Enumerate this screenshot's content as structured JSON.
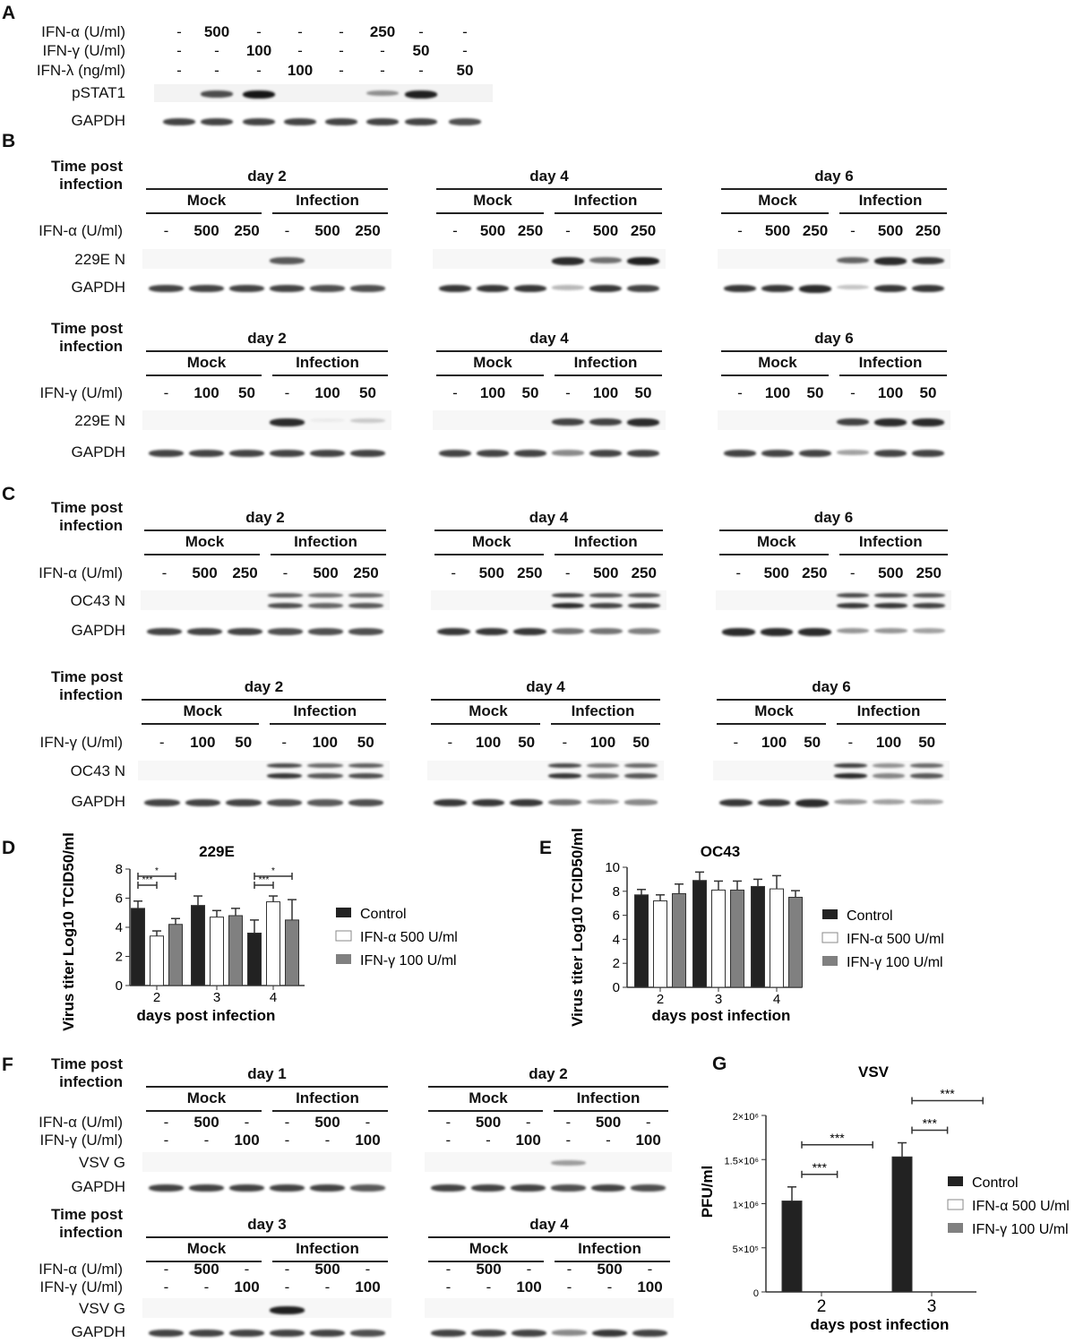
{
  "panel_letters": [
    "A",
    "B",
    "C",
    "D",
    "E",
    "F",
    "G"
  ],
  "panel_a": {
    "treatment_labels": [
      "IFN-α (U/ml)",
      "IFN-γ (U/ml)",
      "IFN-λ (ng/ml)"
    ],
    "treatments": [
      [
        "-",
        "500",
        "-",
        "-",
        "-",
        "250",
        "-",
        "-"
      ],
      [
        "-",
        "-",
        "100",
        "-",
        "-",
        "-",
        "50",
        "-"
      ],
      [
        "-",
        "-",
        "-",
        "100",
        "-",
        "-",
        "-",
        "50"
      ]
    ],
    "band_labels": [
      "pSTAT1",
      "GAPDH"
    ],
    "bands": [
      [
        0,
        0.75,
        1,
        0,
        0,
        0.45,
        0.95,
        0
      ],
      [
        0.8,
        0.8,
        0.8,
        0.8,
        0.8,
        0.8,
        0.8,
        0.75
      ]
    ]
  },
  "blot_rows": [
    {
      "header": "Time post infection",
      "treatment_labels": [
        "IFN-α (U/ml)"
      ],
      "band_labels": [
        "229E N",
        "GAPDH"
      ],
      "doublet": [
        false,
        false
      ],
      "days": [
        {
          "day": "day 2",
          "groups": [
            "Mock",
            "Infection"
          ],
          "treatments": [
            [
              "-",
              "500",
              "250",
              "-",
              "500",
              "250"
            ]
          ],
          "bands": [
            [
              0,
              0,
              0,
              0.7,
              0,
              0
            ],
            [
              0.8,
              0.8,
              0.8,
              0.8,
              0.75,
              0.75
            ]
          ]
        },
        {
          "day": "day 4",
          "groups": [
            "Mock",
            "Infection"
          ],
          "treatments": [
            [
              "-",
              "500",
              "250",
              "-",
              "500",
              "250"
            ]
          ],
          "bands": [
            [
              0,
              0,
              0,
              0.9,
              0.6,
              0.95
            ],
            [
              0.85,
              0.85,
              0.85,
              0.3,
              0.85,
              0.8
            ]
          ]
        },
        {
          "day": "day 6",
          "groups": [
            "Mock",
            "Infection"
          ],
          "treatments": [
            [
              "-",
              "500",
              "250",
              "-",
              "500",
              "250"
            ]
          ],
          "bands": [
            [
              0,
              0,
              0,
              0.65,
              0.9,
              0.85
            ],
            [
              0.85,
              0.85,
              0.9,
              0.25,
              0.85,
              0.85
            ]
          ]
        }
      ]
    },
    {
      "header": "Time post infection",
      "treatment_labels": [
        "IFN-γ (U/ml)"
      ],
      "band_labels": [
        "229E N",
        "GAPDH"
      ],
      "doublet": [
        false,
        false
      ],
      "days": [
        {
          "day": "day 2",
          "groups": [
            "Mock",
            "Infection"
          ],
          "treatments": [
            [
              "-",
              "100",
              "50",
              "-",
              "100",
              "50"
            ]
          ],
          "bands": [
            [
              0,
              0,
              0,
              0.9,
              0.05,
              0.2
            ],
            [
              0.8,
              0.8,
              0.8,
              0.8,
              0.8,
              0.8
            ]
          ]
        },
        {
          "day": "day 4",
          "groups": [
            "Mock",
            "Infection"
          ],
          "treatments": [
            [
              "-",
              "100",
              "50",
              "-",
              "100",
              "50"
            ]
          ],
          "bands": [
            [
              0,
              0,
              0,
              0.8,
              0.8,
              0.9
            ],
            [
              0.8,
              0.8,
              0.8,
              0.5,
              0.8,
              0.8
            ]
          ]
        },
        {
          "day": "day 6",
          "groups": [
            "Mock",
            "Infection"
          ],
          "treatments": [
            [
              "-",
              "100",
              "50",
              "-",
              "100",
              "50"
            ]
          ],
          "bands": [
            [
              0,
              0,
              0,
              0.8,
              0.9,
              0.9
            ],
            [
              0.8,
              0.8,
              0.8,
              0.4,
              0.8,
              0.8
            ]
          ]
        }
      ]
    },
    {
      "header": "Time post infection",
      "treatment_labels": [
        "IFN-α (U/ml)"
      ],
      "band_labels": [
        "OC43 N",
        "GAPDH"
      ],
      "doublet": [
        true,
        false
      ],
      "days": [
        {
          "day": "day 2",
          "groups": [
            "Mock",
            "Infection"
          ],
          "treatments": [
            [
              "-",
              "500",
              "250",
              "-",
              "500",
              "250"
            ]
          ],
          "bands": [
            [
              0,
              0,
              0,
              0.75,
              0.65,
              0.7
            ],
            [
              0.8,
              0.8,
              0.8,
              0.75,
              0.75,
              0.75
            ]
          ]
        },
        {
          "day": "day 4",
          "groups": [
            "Mock",
            "Infection"
          ],
          "treatments": [
            [
              "-",
              "500",
              "250",
              "-",
              "500",
              "250"
            ]
          ],
          "bands": [
            [
              0,
              0,
              0,
              0.9,
              0.8,
              0.8
            ],
            [
              0.85,
              0.85,
              0.85,
              0.6,
              0.6,
              0.55
            ]
          ]
        },
        {
          "day": "day 6",
          "groups": [
            "Mock",
            "Infection"
          ],
          "treatments": [
            [
              "-",
              "500",
              "250",
              "-",
              "500",
              "250"
            ]
          ],
          "bands": [
            [
              0,
              0,
              0,
              0.85,
              0.85,
              0.8
            ],
            [
              0.9,
              0.9,
              0.9,
              0.45,
              0.45,
              0.4
            ]
          ]
        }
      ]
    },
    {
      "header": "Time post infection",
      "treatment_labels": [
        "IFN-γ (U/ml)"
      ],
      "band_labels": [
        "OC43 N",
        "GAPDH"
      ],
      "doublet": [
        true,
        false
      ],
      "days": [
        {
          "day": "day 2",
          "groups": [
            "Mock",
            "Infection"
          ],
          "treatments": [
            [
              "-",
              "100",
              "50",
              "-",
              "100",
              "50"
            ]
          ],
          "bands": [
            [
              0,
              0,
              0,
              0.85,
              0.7,
              0.75
            ],
            [
              0.8,
              0.8,
              0.8,
              0.75,
              0.7,
              0.75
            ]
          ]
        },
        {
          "day": "day 4",
          "groups": [
            "Mock",
            "Infection"
          ],
          "treatments": [
            [
              "-",
              "100",
              "50",
              "-",
              "100",
              "50"
            ]
          ],
          "bands": [
            [
              0,
              0,
              0,
              0.85,
              0.6,
              0.7
            ],
            [
              0.85,
              0.85,
              0.85,
              0.6,
              0.45,
              0.5
            ]
          ]
        },
        {
          "day": "day 6",
          "groups": [
            "Mock",
            "Infection"
          ],
          "treatments": [
            [
              "-",
              "100",
              "50",
              "-",
              "100",
              "50"
            ]
          ],
          "bands": [
            [
              0,
              0,
              0,
              0.9,
              0.5,
              0.7
            ],
            [
              0.85,
              0.85,
              0.9,
              0.45,
              0.4,
              0.4
            ]
          ]
        }
      ]
    },
    {
      "header": "Time post infection",
      "treatment_labels": [
        "IFN-α (U/ml)",
        "IFN-γ (U/ml)"
      ],
      "band_labels": [
        "VSV G",
        "GAPDH"
      ],
      "doublet": [
        false,
        false
      ],
      "days": [
        {
          "day": "day 1",
          "groups": [
            "Mock",
            "Infection"
          ],
          "treatments": [
            [
              "-",
              "500",
              "-",
              "-",
              "500",
              "-"
            ],
            [
              "-",
              "-",
              "100",
              "-",
              "-",
              "100"
            ]
          ],
          "bands": [
            [
              0,
              0,
              0,
              0,
              0,
              0
            ],
            [
              0.8,
              0.8,
              0.8,
              0.8,
              0.8,
              0.7
            ]
          ]
        },
        {
          "day": "day 2",
          "groups": [
            "Mock",
            "Infection"
          ],
          "treatments": [
            [
              "-",
              "500",
              "-",
              "-",
              "500",
              "-"
            ],
            [
              "-",
              "-",
              "100",
              "-",
              "-",
              "100"
            ]
          ],
          "bands": [
            [
              0,
              0,
              0,
              0.4,
              0,
              0
            ],
            [
              0.8,
              0.8,
              0.8,
              0.75,
              0.8,
              0.75
            ]
          ]
        }
      ]
    },
    {
      "header": "Time post infection",
      "treatment_labels": [
        "IFN-α (U/ml)",
        "IFN-γ (U/ml)"
      ],
      "band_labels": [
        "VSV G",
        "GAPDH"
      ],
      "doublet": [
        false,
        false
      ],
      "days": [
        {
          "day": "day 3",
          "groups": [
            "Mock",
            "Infection"
          ],
          "treatments": [
            [
              "-",
              "500",
              "-",
              "-",
              "500",
              "-"
            ],
            [
              "-",
              "-",
              "100",
              "-",
              "-",
              "100"
            ]
          ],
          "bands": [
            [
              0,
              0,
              0,
              0.95,
              0,
              0
            ],
            [
              0.8,
              0.8,
              0.8,
              0.8,
              0.8,
              0.75
            ]
          ]
        },
        {
          "day": "day 4",
          "groups": [
            "Mock",
            "Infection"
          ],
          "treatments": [
            [
              "-",
              "500",
              "-",
              "-",
              "500",
              "-"
            ],
            [
              "-",
              "-",
              "100",
              "-",
              "-",
              "100"
            ]
          ],
          "bands": [
            [
              0,
              0,
              0,
              0,
              0,
              0
            ],
            [
              0.8,
              0.8,
              0.8,
              0.5,
              0.85,
              0.8
            ]
          ]
        }
      ]
    }
  ],
  "chart_data": [
    {
      "type": "bar",
      "title": "229E",
      "xlabel": "days post infection",
      "ylabel": "Virus titer Log10 TCID50/ml",
      "categories": [
        "2",
        "3",
        "4"
      ],
      "ylim": [
        0,
        8
      ],
      "yticks": [
        "0",
        "2",
        "4",
        "6",
        "8"
      ],
      "series": [
        {
          "name": "Control",
          "values": [
            5.3,
            5.5,
            3.6
          ],
          "errors": [
            0.5,
            0.65,
            0.9
          ],
          "color": "#222222"
        },
        {
          "name": "IFN-α 500 U/ml",
          "values": [
            3.4,
            4.7,
            5.75
          ],
          "errors": [
            0.35,
            0.45,
            0.4
          ],
          "color": "#ffffff"
        },
        {
          "name": "IFN-γ 100 U/ml",
          "values": [
            4.2,
            4.8,
            4.5
          ],
          "errors": [
            0.4,
            0.5,
            1.4
          ],
          "color": "#808080"
        }
      ],
      "significance": [
        {
          "category": "2",
          "from": 0,
          "to": 1,
          "label": "***"
        },
        {
          "category": "2",
          "from": 0,
          "to": 2,
          "label": "*"
        },
        {
          "category": "4",
          "from": 0,
          "to": 1,
          "label": "***"
        },
        {
          "category": "4",
          "from": 0,
          "to": 2,
          "label": "*"
        }
      ],
      "legend": "right"
    },
    {
      "type": "bar",
      "title": "OC43",
      "xlabel": "days post infection",
      "ylabel": "Virus titer Log10 TCID50/ml",
      "categories": [
        "2",
        "3",
        "4"
      ],
      "ylim": [
        0,
        10
      ],
      "yticks": [
        "0",
        "2",
        "4",
        "6",
        "8",
        "10"
      ],
      "series": [
        {
          "name": "Control",
          "values": [
            7.7,
            8.9,
            8.4
          ],
          "errors": [
            0.45,
            0.7,
            0.6
          ],
          "color": "#222222"
        },
        {
          "name": "IFN-α 500 U/ml",
          "values": [
            7.2,
            8.1,
            8.2
          ],
          "errors": [
            0.5,
            0.75,
            1.1
          ],
          "color": "#ffffff"
        },
        {
          "name": "IFN-γ 100 U/ml",
          "values": [
            7.8,
            8.1,
            7.5
          ],
          "errors": [
            0.8,
            0.75,
            0.55
          ],
          "color": "#808080"
        }
      ],
      "significance": [],
      "legend": "right"
    },
    {
      "type": "bar",
      "title": "VSV",
      "xlabel": "days post infection",
      "ylabel": "PFU/ml",
      "categories": [
        "2",
        "3"
      ],
      "ylim": [
        0,
        2000000
      ],
      "yticks": [
        "0",
        "5×10⁵",
        "1×10⁶",
        "1.5×10⁶",
        "2×10⁶"
      ],
      "series": [
        {
          "name": "Control",
          "values": [
            1030000,
            1530000
          ],
          "errors": [
            160000,
            160000
          ],
          "color": "#222222"
        },
        {
          "name": "IFN-α 500 U/ml",
          "values": [
            0,
            0
          ],
          "errors": [
            0,
            0
          ],
          "color": "#ffffff"
        },
        {
          "name": "IFN-γ 100 U/ml",
          "values": [
            0,
            0
          ],
          "errors": [
            0,
            0
          ],
          "color": "#808080"
        }
      ],
      "significance": [
        {
          "category": "2",
          "from": 0,
          "to": 1,
          "label": "***"
        },
        {
          "category": "2",
          "from": 0,
          "to": 2,
          "label": "***"
        },
        {
          "category": "3",
          "from": 0,
          "to": 1,
          "label": "***"
        },
        {
          "category": "3",
          "from": 0,
          "to": 2,
          "label": "***"
        }
      ],
      "legend": "right"
    }
  ]
}
